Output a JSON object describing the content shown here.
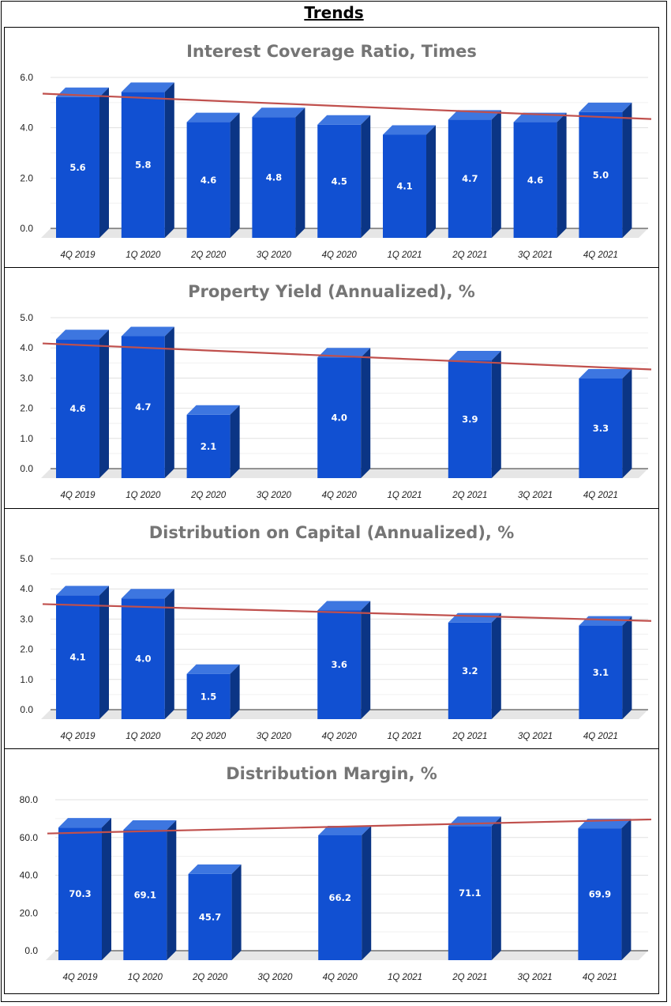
{
  "page_title": "Trends",
  "colors": {
    "bar_front": "#1150D2",
    "bar_top": "#3D76E0",
    "bar_side": "#0B3585",
    "trend": "#C0504D",
    "floor": "#E6E6E6",
    "grid": "#E0E0E0"
  },
  "chart_data": [
    {
      "type": "bar",
      "title": "Interest Coverage Ratio, Times",
      "categories": [
        "4Q 2019",
        "1Q 2020",
        "2Q 2020",
        "3Q 2020",
        "4Q 2020",
        "1Q 2021",
        "2Q 2021",
        "3Q 2021",
        "4Q 2021"
      ],
      "values": [
        5.6,
        5.8,
        4.6,
        4.8,
        4.5,
        4.1,
        4.7,
        4.6,
        5.0
      ],
      "value_labels": [
        "5.6",
        "5.8",
        "4.6",
        "4.8",
        "4.5",
        "4.1",
        "4.7",
        "4.6",
        "5.0"
      ],
      "y_ticks": [
        "0.0",
        "2.0",
        "4.0",
        "6.0"
      ],
      "ylim": [
        0,
        6
      ],
      "trendline": "linear",
      "grid": true
    },
    {
      "type": "bar",
      "title": "Property Yield (Annualized), %",
      "categories": [
        "4Q 2019",
        "1Q 2020",
        "2Q 2020",
        "3Q 2020",
        "4Q 2020",
        "1Q 2021",
        "2Q 2021",
        "3Q 2021",
        "4Q 2021"
      ],
      "values": [
        4.6,
        4.7,
        2.1,
        null,
        4.0,
        null,
        3.9,
        null,
        3.3
      ],
      "value_labels": [
        "4.6",
        "4.7",
        "2.1",
        "",
        "4.0",
        "",
        "3.9",
        "",
        "3.3"
      ],
      "y_ticks": [
        "0.0",
        "1.0",
        "2.0",
        "3.0",
        "4.0",
        "5.0"
      ],
      "ylim": [
        0,
        5
      ],
      "trendline": "linear",
      "grid": true
    },
    {
      "type": "bar",
      "title": "Distribution on Capital (Annualized), %",
      "categories": [
        "4Q 2019",
        "1Q 2020",
        "2Q 2020",
        "3Q 2020",
        "4Q 2020",
        "1Q 2021",
        "2Q 2021",
        "3Q 2021",
        "4Q 2021"
      ],
      "values": [
        4.1,
        4.0,
        1.5,
        null,
        3.6,
        null,
        3.2,
        null,
        3.1
      ],
      "value_labels": [
        "4.1",
        "4.0",
        "1.5",
        "",
        "3.6",
        "",
        "3.2",
        "",
        "3.1"
      ],
      "y_ticks": [
        "0.0",
        "1.0",
        "2.0",
        "3.0",
        "4.0",
        "5.0"
      ],
      "ylim": [
        0,
        5
      ],
      "trendline": "linear",
      "grid": true
    },
    {
      "type": "bar",
      "title": "Distribution Margin, %",
      "categories": [
        "4Q 2019",
        "1Q 2020",
        "2Q 2020",
        "3Q 2020",
        "4Q 2020",
        "1Q 2021",
        "2Q 2021",
        "3Q 2021",
        "4Q 2021"
      ],
      "values": [
        70.3,
        69.1,
        45.7,
        null,
        66.2,
        null,
        71.1,
        null,
        69.9
      ],
      "value_labels": [
        "70.3",
        "69.1",
        "45.7",
        "",
        "66.2",
        "",
        "71.1",
        "",
        "69.9"
      ],
      "y_ticks": [
        "0.0",
        "20.0",
        "40.0",
        "60.0",
        "80.0"
      ],
      "ylim": [
        0,
        80
      ],
      "trendline": "linear",
      "grid": true
    }
  ]
}
